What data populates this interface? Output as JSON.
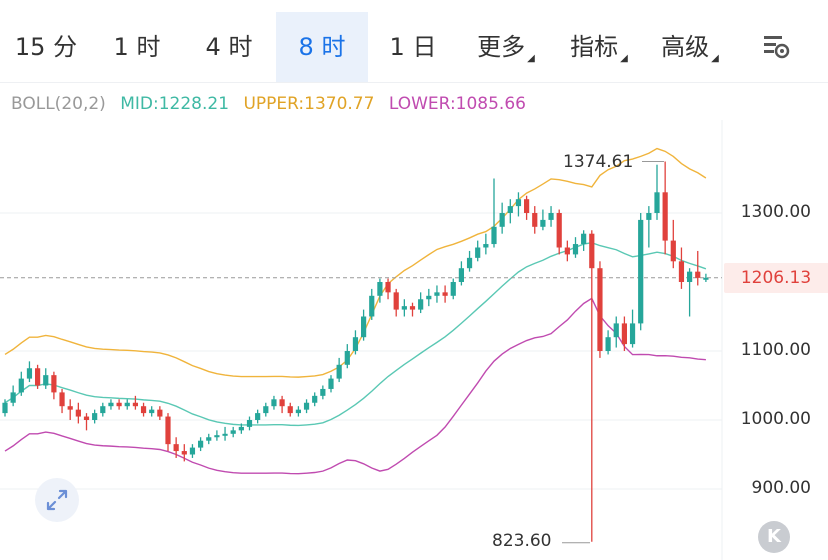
{
  "tabs": [
    {
      "label": "15 分",
      "active": false
    },
    {
      "label": "1 时",
      "active": false
    },
    {
      "label": "4 时",
      "active": false
    },
    {
      "label": "8 时",
      "active": true
    },
    {
      "label": "1 日",
      "active": false
    },
    {
      "label": "更多",
      "active": false,
      "dropdown": true
    },
    {
      "label": "指标",
      "active": false,
      "dropdown": true
    },
    {
      "label": "高级",
      "active": false,
      "dropdown": true
    }
  ],
  "settings_icon": "settings-list-icon",
  "legend": {
    "boll": "BOLL(20,2)",
    "mid": "MID:1228.21",
    "upper": "UPPER:1370.77",
    "lower": "LOWER:1085.66"
  },
  "colors": {
    "up": "#26a69a",
    "down": "#e0413c",
    "mid": "#5ac8b4",
    "upper": "#f0b43c",
    "lower": "#c04bb0",
    "boll_text": "#999999",
    "accent": "#1a73e8"
  },
  "current_price": "1206.13",
  "high_label": "1374.61",
  "low_label": "823.60",
  "expand_icon": "expand-arrows-icon",
  "k_icon": "k-line-icon",
  "k_label": "K",
  "chart_data": {
    "type": "candlestick",
    "indicator": "BOLL(20,2)",
    "y_ticks": [
      "1300.00",
      "1100.00",
      "1000.00",
      "900.00"
    ],
    "ylim": [
      820,
      1390
    ],
    "current": 1206.13,
    "candles": [
      [
        1010,
        1025,
        1005,
        1030
      ],
      [
        1025,
        1040,
        1020,
        1050
      ],
      [
        1040,
        1060,
        1035,
        1070
      ],
      [
        1060,
        1075,
        1055,
        1085
      ],
      [
        1075,
        1050,
        1045,
        1080
      ],
      [
        1050,
        1065,
        1045,
        1075
      ],
      [
        1065,
        1040,
        1030,
        1070
      ],
      [
        1040,
        1020,
        1010,
        1045
      ],
      [
        1020,
        1015,
        1000,
        1030
      ],
      [
        1015,
        1005,
        995,
        1025
      ],
      [
        1005,
        1000,
        985,
        1010
      ],
      [
        1000,
        1010,
        995,
        1015
      ],
      [
        1010,
        1020,
        1005,
        1025
      ],
      [
        1020,
        1025,
        1015,
        1030
      ],
      [
        1025,
        1020,
        1015,
        1030
      ],
      [
        1020,
        1025,
        1015,
        1030
      ],
      [
        1025,
        1020,
        1015,
        1035
      ],
      [
        1020,
        1010,
        1005,
        1025
      ],
      [
        1010,
        1015,
        1005,
        1020
      ],
      [
        1015,
        1005,
        1000,
        1020
      ],
      [
        1005,
        965,
        955,
        1010
      ],
      [
        965,
        955,
        945,
        975
      ],
      [
        955,
        950,
        940,
        965
      ],
      [
        950,
        960,
        945,
        965
      ],
      [
        960,
        970,
        955,
        975
      ],
      [
        970,
        975,
        965,
        980
      ],
      [
        975,
        978,
        970,
        985
      ],
      [
        978,
        980,
        970,
        990
      ],
      [
        980,
        985,
        975,
        990
      ],
      [
        985,
        990,
        980,
        995
      ],
      [
        990,
        1000,
        985,
        1005
      ],
      [
        1000,
        1010,
        995,
        1015
      ],
      [
        1010,
        1020,
        1005,
        1025
      ],
      [
        1020,
        1030,
        1015,
        1035
      ],
      [
        1030,
        1020,
        1010,
        1035
      ],
      [
        1020,
        1010,
        1005,
        1025
      ],
      [
        1010,
        1015,
        1005,
        1020
      ],
      [
        1015,
        1025,
        1010,
        1030
      ],
      [
        1025,
        1035,
        1020,
        1040
      ],
      [
        1035,
        1045,
        1030,
        1050
      ],
      [
        1045,
        1060,
        1040,
        1065
      ],
      [
        1060,
        1080,
        1055,
        1090
      ],
      [
        1080,
        1100,
        1075,
        1110
      ],
      [
        1100,
        1120,
        1095,
        1130
      ],
      [
        1120,
        1150,
        1115,
        1160
      ],
      [
        1150,
        1180,
        1145,
        1190
      ],
      [
        1180,
        1200,
        1170,
        1205
      ],
      [
        1200,
        1185,
        1175,
        1205
      ],
      [
        1185,
        1160,
        1150,
        1190
      ],
      [
        1160,
        1165,
        1150,
        1175
      ],
      [
        1165,
        1160,
        1150,
        1170
      ],
      [
        1160,
        1175,
        1155,
        1185
      ],
      [
        1175,
        1180,
        1165,
        1190
      ],
      [
        1180,
        1185,
        1170,
        1195
      ],
      [
        1185,
        1180,
        1170,
        1195
      ],
      [
        1180,
        1200,
        1175,
        1205
      ],
      [
        1200,
        1220,
        1195,
        1230
      ],
      [
        1220,
        1235,
        1215,
        1245
      ],
      [
        1235,
        1250,
        1230,
        1260
      ],
      [
        1250,
        1255,
        1240,
        1270
      ],
      [
        1255,
        1280,
        1250,
        1350
      ],
      [
        1280,
        1300,
        1270,
        1315
      ],
      [
        1300,
        1310,
        1285,
        1320
      ],
      [
        1310,
        1320,
        1295,
        1330
      ],
      [
        1320,
        1300,
        1290,
        1325
      ],
      [
        1300,
        1280,
        1270,
        1310
      ],
      [
        1280,
        1290,
        1275,
        1305
      ],
      [
        1290,
        1300,
        1280,
        1310
      ],
      [
        1300,
        1250,
        1240,
        1305
      ],
      [
        1250,
        1240,
        1230,
        1260
      ],
      [
        1240,
        1255,
        1235,
        1265
      ],
      [
        1255,
        1270,
        1245,
        1275
      ],
      [
        1270,
        1220,
        823.6,
        1275
      ],
      [
        1220,
        1100,
        1090,
        1230
      ],
      [
        1100,
        1120,
        1095,
        1130
      ],
      [
        1120,
        1140,
        1105,
        1150
      ],
      [
        1140,
        1110,
        1100,
        1150
      ],
      [
        1110,
        1140,
        1105,
        1160
      ],
      [
        1140,
        1290,
        1130,
        1300
      ],
      [
        1290,
        1300,
        1250,
        1310
      ],
      [
        1300,
        1330,
        1290,
        1370
      ],
      [
        1330,
        1260,
        1240,
        1374.61
      ],
      [
        1260,
        1230,
        1220,
        1290
      ],
      [
        1230,
        1200,
        1190,
        1250
      ],
      [
        1200,
        1215,
        1150,
        1220
      ],
      [
        1215,
        1206,
        1195,
        1245
      ],
      [
        1206,
        1206.13,
        1200,
        1212
      ]
    ]
  }
}
